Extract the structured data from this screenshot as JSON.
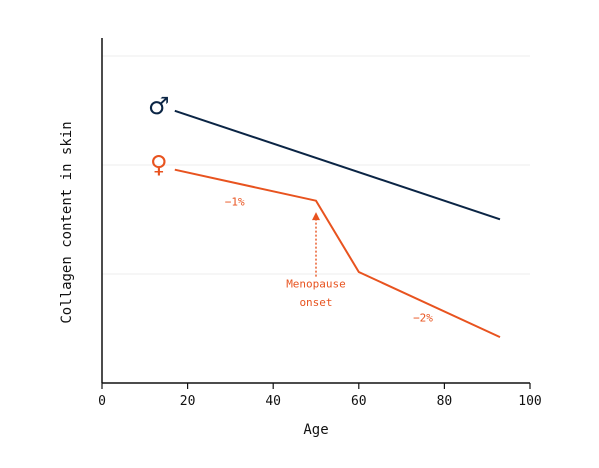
{
  "chart_data": {
    "type": "line",
    "title": "",
    "xlabel": "Age",
    "ylabel": "Collagen content in skin",
    "xlim": [
      0,
      100
    ],
    "xticks": [
      0,
      20,
      40,
      60,
      80,
      100
    ],
    "ylim": [
      0,
      100
    ],
    "yticks_labeled": false,
    "grid": "horizontal",
    "legend": "none",
    "series": [
      {
        "symbol": "♂",
        "color": "#0b2545",
        "x": [
          17,
          93
        ],
        "y": [
          82,
          47
        ]
      },
      {
        "symbol": "♀",
        "color": "#e8531f",
        "x": [
          17,
          50,
          60,
          93
        ],
        "y": [
          63,
          53,
          30,
          9
        ]
      }
    ],
    "annotations": [
      {
        "text": "−1%",
        "x": 31,
        "y": 51.5,
        "color": "#e8531f"
      },
      {
        "text": "Menopause",
        "x": 50,
        "y": 25,
        "color": "#e8531f"
      },
      {
        "text": "onset",
        "x": 50,
        "y": 19,
        "color": "#e8531f"
      },
      {
        "text": "−2%",
        "x": 75,
        "y": 14,
        "color": "#e8531f"
      }
    ],
    "arrow": {
      "x": 50,
      "from_y": 28.5,
      "to_y": 49,
      "color": "#e8531f"
    }
  }
}
